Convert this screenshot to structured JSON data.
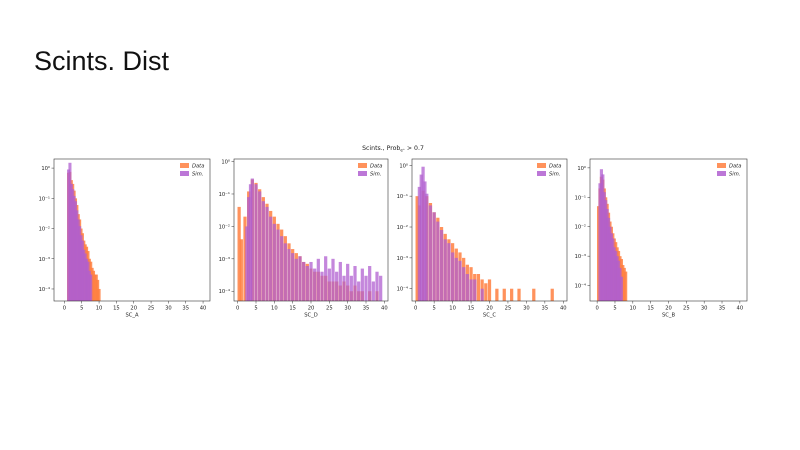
{
  "slide": {
    "title": "Scints. Dist"
  },
  "figure": {
    "suptitle": "Scints., Prob",
    "suptitle_sub": "e⁺",
    "suptitle_rest": " > 0.7"
  },
  "colors": {
    "data": "#ff7f3f",
    "sim": "#b05fd0",
    "overlap": "#cf3f86",
    "axis": "#333333"
  },
  "chart_data": [
    {
      "type": "histogram",
      "xlabel": "SC_A",
      "yscale": "log",
      "xlim": [
        -3,
        42
      ],
      "ylim": [
        4e-05,
        2
      ],
      "xticks": [
        0,
        5,
        10,
        15,
        20,
        25,
        30,
        35,
        40
      ],
      "yticks": [
        {
          "v": 1,
          "label": "10⁰"
        },
        {
          "v": 0.1,
          "label": "10⁻¹"
        },
        {
          "v": 0.01,
          "label": "10⁻²"
        },
        {
          "v": 0.001,
          "label": "10⁻³"
        },
        {
          "v": 0.0001,
          "label": "10⁻⁴"
        }
      ],
      "legend": {
        "position": "top-right",
        "entries": [
          "Data",
          "Sim."
        ]
      },
      "bin_width": 0.4,
      "series": [
        {
          "name": "Data",
          "values": [
            [
              1.2,
              0.7
            ],
            [
              1.6,
              0.75
            ],
            [
              2.0,
              0.4
            ],
            [
              2.4,
              0.3
            ],
            [
              2.8,
              0.18
            ],
            [
              3.2,
              0.1
            ],
            [
              3.6,
              0.06
            ],
            [
              4.0,
              0.03
            ],
            [
              4.4,
              0.02
            ],
            [
              4.8,
              0.01
            ],
            [
              5.2,
              0.007
            ],
            [
              5.6,
              0.004
            ],
            [
              6.0,
              0.003
            ],
            [
              6.4,
              0.0025
            ],
            [
              6.8,
              0.0018
            ],
            [
              7.2,
              0.001
            ],
            [
              7.6,
              0.0008
            ],
            [
              8.0,
              0.0005
            ],
            [
              8.4,
              0.0004
            ],
            [
              8.8,
              0.0003
            ],
            [
              9.2,
              0.0003
            ],
            [
              9.6,
              0.0002
            ],
            [
              10.0,
              0.0001
            ]
          ]
        },
        {
          "name": "Sim.",
          "values": [
            [
              1.2,
              0.9
            ],
            [
              1.6,
              1.5
            ],
            [
              2.0,
              0.3
            ],
            [
              2.4,
              0.2
            ],
            [
              2.8,
              0.12
            ],
            [
              3.2,
              0.08
            ],
            [
              3.6,
              0.04
            ],
            [
              4.0,
              0.02
            ],
            [
              4.4,
              0.012
            ],
            [
              4.8,
              0.006
            ],
            [
              5.2,
              0.004
            ],
            [
              5.6,
              0.002
            ],
            [
              6.0,
              0.0015
            ],
            [
              6.4,
              0.001
            ],
            [
              6.8,
              0.0008
            ],
            [
              7.2,
              0.0004
            ],
            [
              7.6,
              0.0003
            ]
          ]
        }
      ]
    },
    {
      "type": "histogram",
      "xlabel": "SC_D",
      "yscale": "log",
      "xlim": [
        -1,
        41
      ],
      "ylim": [
        5e-05,
        1.2
      ],
      "xticks": [
        0,
        5,
        10,
        15,
        20,
        25,
        30,
        35,
        40
      ],
      "yticks": [
        {
          "v": 1,
          "label": "10⁰"
        },
        {
          "v": 0.1,
          "label": "10⁻¹"
        },
        {
          "v": 0.01,
          "label": "10⁻²"
        },
        {
          "v": 0.001,
          "label": "10⁻³"
        },
        {
          "v": 0.0001,
          "label": "10⁻⁴"
        }
      ],
      "legend": {
        "position": "top-right",
        "entries": [
          "Data",
          "Sim."
        ]
      },
      "bin_width": 0.4,
      "series": [
        {
          "name": "Data",
          "values": [
            [
              0.4,
              0.04
            ],
            [
              1.0,
              0.004
            ],
            [
              2.0,
              0.02
            ],
            [
              3.0,
              0.12
            ],
            [
              4.0,
              0.28
            ],
            [
              5.0,
              0.22
            ],
            [
              6.0,
              0.14
            ],
            [
              7.0,
              0.08
            ],
            [
              8.0,
              0.05
            ],
            [
              9.0,
              0.03
            ],
            [
              10.0,
              0.02
            ],
            [
              11.0,
              0.012
            ],
            [
              12.0,
              0.008
            ],
            [
              13.0,
              0.005
            ],
            [
              14.0,
              0.003
            ],
            [
              15.0,
              0.002
            ],
            [
              16.0,
              0.0015
            ],
            [
              17.0,
              0.0012
            ],
            [
              18.0,
              0.0008
            ],
            [
              19.0,
              0.0007
            ],
            [
              20.0,
              0.0005
            ],
            [
              21.0,
              0.0004
            ],
            [
              22.0,
              0.0004
            ],
            [
              23.0,
              0.0003
            ],
            [
              24.0,
              0.0003
            ],
            [
              25.0,
              0.0002
            ],
            [
              26.0,
              0.0002
            ],
            [
              27.0,
              0.0002
            ],
            [
              28.0,
              0.00015
            ],
            [
              29.0,
              0.0002
            ],
            [
              30.0,
              0.00015
            ],
            [
              31.0,
              0.0001
            ],
            [
              32.0,
              0.00015
            ],
            [
              33.0,
              0.0001
            ],
            [
              34.0,
              0.0001
            ],
            [
              36.0,
              0.0001
            ],
            [
              38.0,
              0.0001
            ]
          ]
        },
        {
          "name": "Sim.",
          "values": [
            [
              2.5,
              0.01
            ],
            [
              3.0,
              0.08
            ],
            [
              3.5,
              0.2
            ],
            [
              4.0,
              0.3
            ],
            [
              5.0,
              0.2
            ],
            [
              6.0,
              0.12
            ],
            [
              7.0,
              0.06
            ],
            [
              8.0,
              0.04
            ],
            [
              9.0,
              0.02
            ],
            [
              10.0,
              0.012
            ],
            [
              11.0,
              0.008
            ],
            [
              12.0,
              0.005
            ],
            [
              13.0,
              0.003
            ],
            [
              14.0,
              0.002
            ],
            [
              15.0,
              0.0015
            ],
            [
              16.0,
              0.001
            ],
            [
              17.0,
              0.0012
            ],
            [
              18.0,
              0.0008
            ],
            [
              19.0,
              0.0006
            ],
            [
              20.0,
              0.0008
            ],
            [
              21.0,
              0.0005
            ],
            [
              22.0,
              0.001
            ],
            [
              23.0,
              0.0004
            ],
            [
              24.0,
              0.0012
            ],
            [
              25.0,
              0.0005
            ],
            [
              26.0,
              0.001
            ],
            [
              27.0,
              0.0004
            ],
            [
              28.0,
              0.0008
            ],
            [
              29.0,
              0.0003
            ],
            [
              30.0,
              0.0007
            ],
            [
              31.0,
              0.0003
            ],
            [
              32.0,
              0.0006
            ],
            [
              33.0,
              0.0002
            ],
            [
              34.0,
              0.0005
            ],
            [
              35.0,
              0.0003
            ],
            [
              36.0,
              0.0006
            ],
            [
              37.0,
              0.0002
            ],
            [
              38.0,
              0.0004
            ],
            [
              39.0,
              0.0003
            ]
          ]
        }
      ]
    },
    {
      "type": "histogram",
      "xlabel": "SC_C",
      "yscale": "log",
      "xlim": [
        -1,
        41
      ],
      "ylim": [
        4e-05,
        1.6
      ],
      "xticks": [
        0,
        5,
        10,
        15,
        20,
        25,
        30,
        35,
        40
      ],
      "yticks": [
        {
          "v": 1,
          "label": "10⁰"
        },
        {
          "v": 0.1,
          "label": "10⁻¹"
        },
        {
          "v": 0.01,
          "label": "10⁻²"
        },
        {
          "v": 0.001,
          "label": "10⁻³"
        },
        {
          "v": 0.0001,
          "label": "10⁻⁴"
        }
      ],
      "legend": {
        "position": "top-right",
        "entries": [
          "Data",
          "Sim."
        ]
      },
      "bin_width": 0.4,
      "series": [
        {
          "name": "Data",
          "values": [
            [
              0.4,
              0.1
            ],
            [
              1.0,
              0.05
            ],
            [
              2.0,
              0.15
            ],
            [
              3.0,
              0.1
            ],
            [
              4.0,
              0.06
            ],
            [
              5.0,
              0.03
            ],
            [
              6.0,
              0.02
            ],
            [
              7.0,
              0.01
            ],
            [
              8.0,
              0.006
            ],
            [
              9.0,
              0.004
            ],
            [
              10.0,
              0.003
            ],
            [
              11.0,
              0.002
            ],
            [
              12.0,
              0.0015
            ],
            [
              13.0,
              0.001
            ],
            [
              14.0,
              0.0006
            ],
            [
              15.0,
              0.0005
            ],
            [
              16.0,
              0.0003
            ],
            [
              17.0,
              0.0003
            ],
            [
              18.0,
              0.0002
            ],
            [
              19.0,
              0.00015
            ],
            [
              20.0,
              0.0002
            ],
            [
              22.0,
              0.0001
            ],
            [
              24.0,
              0.0001
            ],
            [
              26.0,
              0.0001
            ],
            [
              28.0,
              0.0001
            ],
            [
              32.0,
              0.0001
            ],
            [
              37.0,
              0.0001
            ]
          ]
        },
        {
          "name": "Sim.",
          "values": [
            [
              1.0,
              0.2
            ],
            [
              1.5,
              0.5
            ],
            [
              2.0,
              0.9
            ],
            [
              2.5,
              0.3
            ],
            [
              3.0,
              0.12
            ],
            [
              4.0,
              0.05
            ],
            [
              5.0,
              0.03
            ],
            [
              6.0,
              0.015
            ],
            [
              7.0,
              0.008
            ],
            [
              8.0,
              0.004
            ],
            [
              9.0,
              0.003
            ],
            [
              10.0,
              0.0015
            ],
            [
              11.0,
              0.001
            ],
            [
              12.0,
              0.0008
            ],
            [
              13.0,
              0.0005
            ],
            [
              14.0,
              0.0003
            ],
            [
              15.0,
              0.0002
            ],
            [
              16.0,
              0.0002
            ],
            [
              18.0,
              0.0001
            ]
          ]
        }
      ]
    },
    {
      "type": "histogram",
      "xlabel": "SC_B",
      "yscale": "log",
      "xlim": [
        -2,
        42
      ],
      "ylim": [
        3e-05,
        2
      ],
      "xticks": [
        0,
        5,
        10,
        15,
        20,
        25,
        30,
        35,
        40
      ],
      "yticks": [
        {
          "v": 1,
          "label": "10⁰"
        },
        {
          "v": 0.1,
          "label": "10⁻¹"
        },
        {
          "v": 0.01,
          "label": "10⁻²"
        },
        {
          "v": 0.001,
          "label": "10⁻³"
        },
        {
          "v": 0.0001,
          "label": "10⁻⁴"
        }
      ],
      "legend": {
        "position": "top-right",
        "entries": [
          "Data",
          "Sim."
        ]
      },
      "bin_width": 0.4,
      "series": [
        {
          "name": "Data",
          "values": [
            [
              0.4,
              0.05
            ],
            [
              0.8,
              0.2
            ],
            [
              1.2,
              0.5
            ],
            [
              1.6,
              0.4
            ],
            [
              2.0,
              0.2
            ],
            [
              2.4,
              0.1
            ],
            [
              2.8,
              0.06
            ],
            [
              3.2,
              0.03
            ],
            [
              3.6,
              0.015
            ],
            [
              4.0,
              0.01
            ],
            [
              4.4,
              0.006
            ],
            [
              4.8,
              0.004
            ],
            [
              5.2,
              0.003
            ],
            [
              5.6,
              0.002
            ],
            [
              6.0,
              0.0015
            ],
            [
              6.4,
              0.001
            ],
            [
              6.8,
              0.0008
            ],
            [
              7.2,
              0.0005
            ],
            [
              7.6,
              0.0004
            ],
            [
              8.0,
              0.0003
            ]
          ]
        },
        {
          "name": "Sim.",
          "values": [
            [
              0.8,
              0.3
            ],
            [
              1.2,
              0.9
            ],
            [
              1.6,
              0.6
            ],
            [
              2.0,
              0.15
            ],
            [
              2.4,
              0.08
            ],
            [
              2.8,
              0.04
            ],
            [
              3.2,
              0.02
            ],
            [
              3.6,
              0.01
            ],
            [
              4.0,
              0.006
            ],
            [
              4.4,
              0.004
            ],
            [
              4.8,
              0.002
            ],
            [
              5.2,
              0.0015
            ],
            [
              5.6,
              0.001
            ],
            [
              6.0,
              0.0007
            ],
            [
              6.4,
              0.0004
            ],
            [
              6.8,
              0.0002
            ]
          ]
        }
      ]
    }
  ]
}
